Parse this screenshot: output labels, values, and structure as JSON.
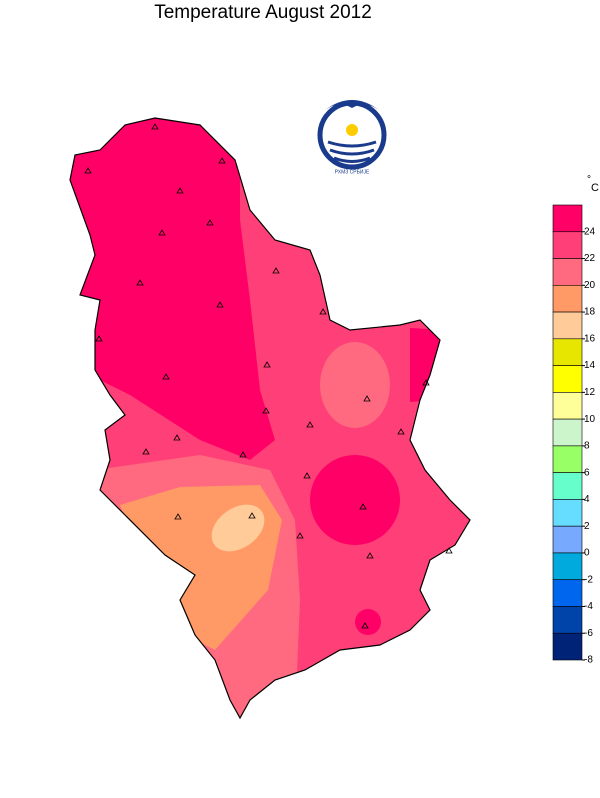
{
  "header": {
    "title": "Temperature  August  2012",
    "logo_text": "РХМЗ СРБИЈЕ"
  },
  "colorbar": {
    "unit_symbol": "°",
    "unit": "C",
    "ticks": [
      24,
      22,
      20,
      18,
      16,
      14,
      12,
      10,
      8,
      6,
      4,
      2,
      0,
      -2,
      -4,
      -6,
      -8
    ],
    "colors": [
      "#ff0066",
      "#ff3f77",
      "#ff6a80",
      "#ff9966",
      "#ffcc99",
      "#e6e600",
      "#ffff00",
      "#ffff99",
      "#ccf5cc",
      "#99ff66",
      "#66ffcc",
      "#66ddff",
      "#77aaff",
      "#00aadd",
      "#0066ee",
      "#0044aa",
      "#002277"
    ]
  }
}
